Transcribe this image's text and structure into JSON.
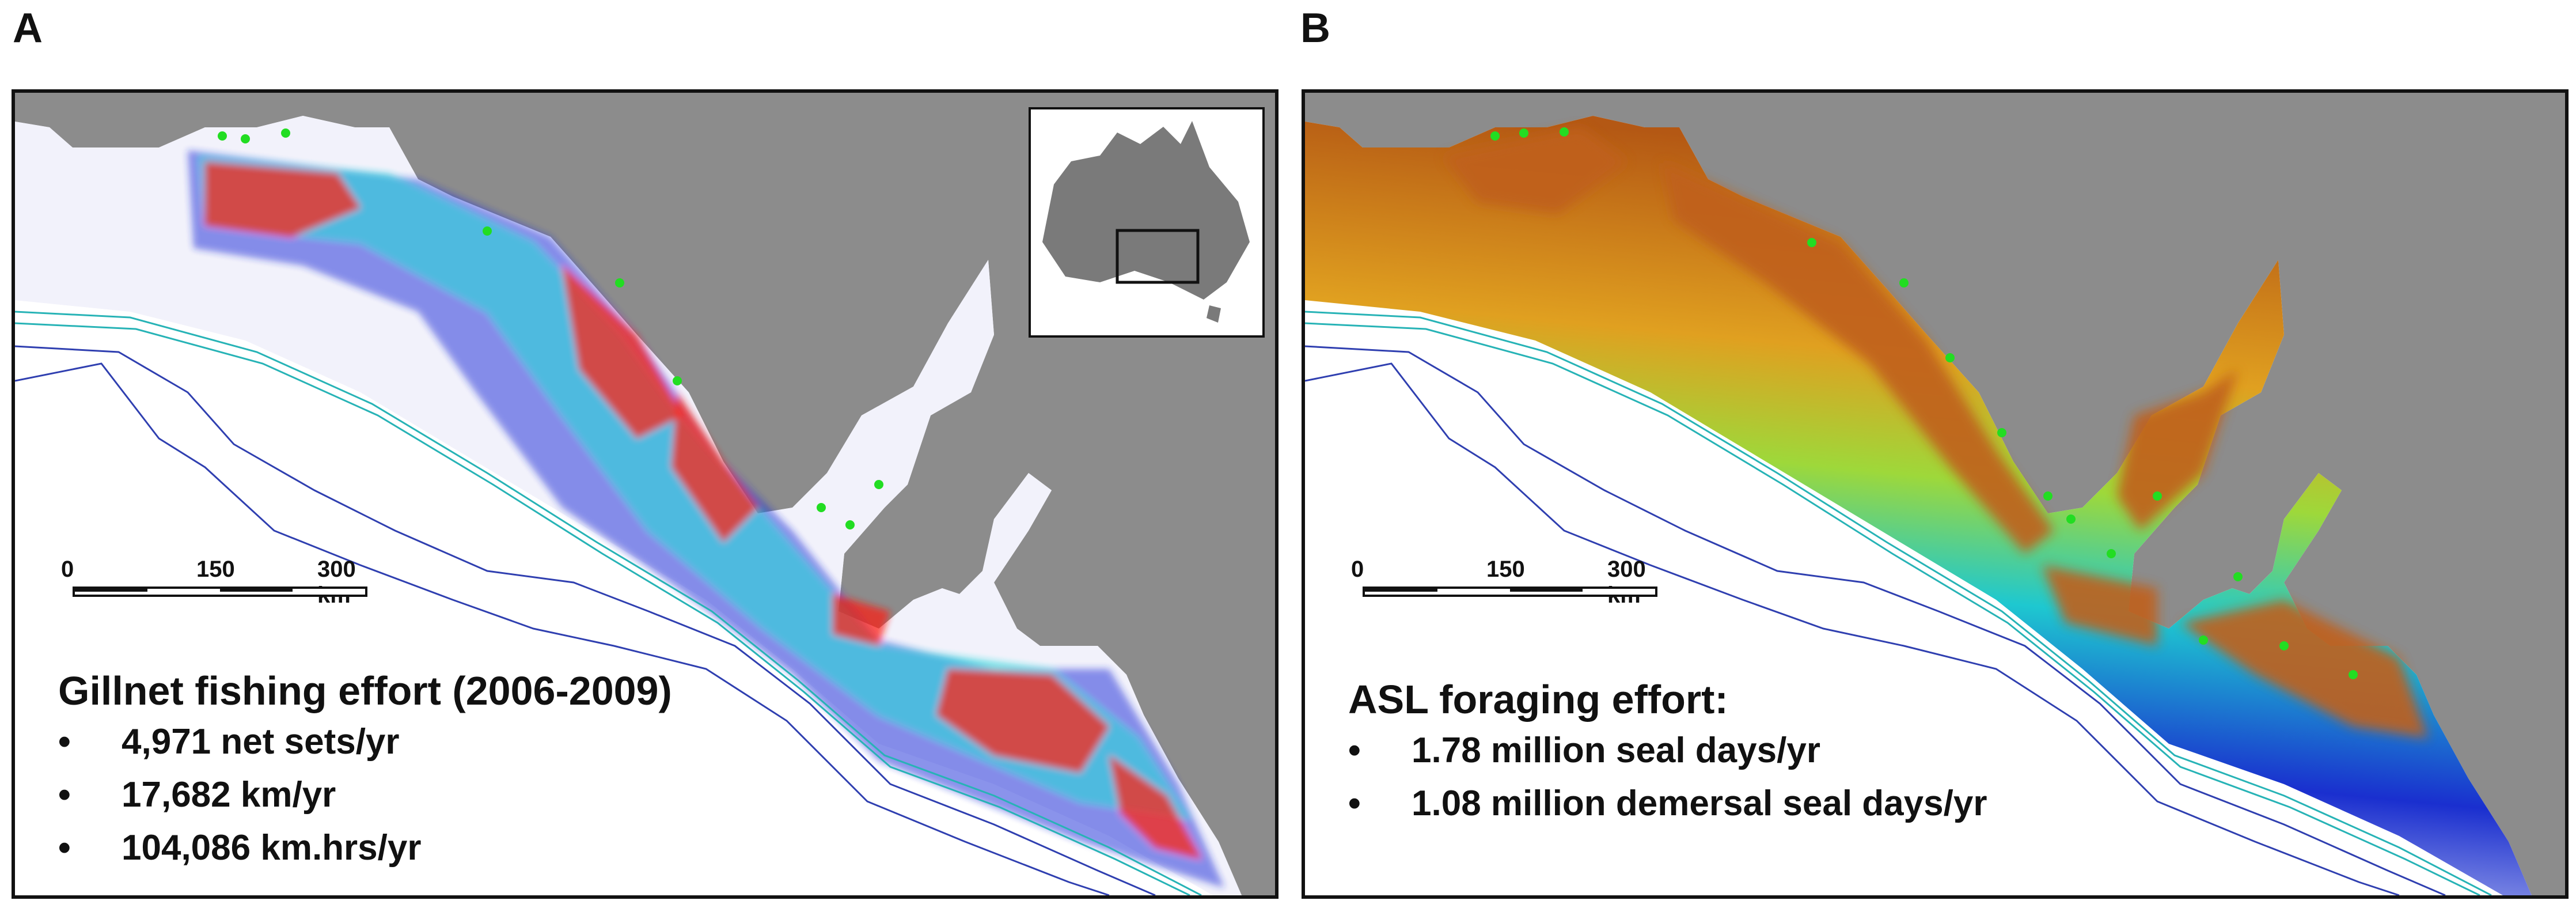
{
  "panels": [
    {
      "letter": "A",
      "scale_labels": [
        "0",
        "150",
        "300 km"
      ],
      "title": "Gillnet fishing effort (2006-2009)",
      "bullets": [
        "4,971 net sets/yr",
        "17,682 km/yr",
        "104,086 km.hrs/yr"
      ]
    },
    {
      "letter": "B",
      "scale_labels": [
        "0",
        "150",
        "300 km"
      ],
      "title": "ASL foraging effort:",
      "bullets": [
        "1.78 million seal days/yr",
        "1.08 million demersal seal days/yr"
      ]
    }
  ],
  "bullet_symbol": "•",
  "colors": {
    "land": "#8c8c8c",
    "ocean": "#ffffff",
    "shelf_fill_a": "#f3f3fb",
    "isobath_teal": "#27b3b6",
    "isobath_blue": "#2f3fb0",
    "effort_low": "#1c2fd8",
    "effort_mid": "#1ed8d8",
    "effort_high": "#ff1a0a",
    "foraging_high": "#c0611a",
    "seal_colony": "#22dd22"
  },
  "icons": {
    "inset": "australia-inset-map-icon"
  }
}
